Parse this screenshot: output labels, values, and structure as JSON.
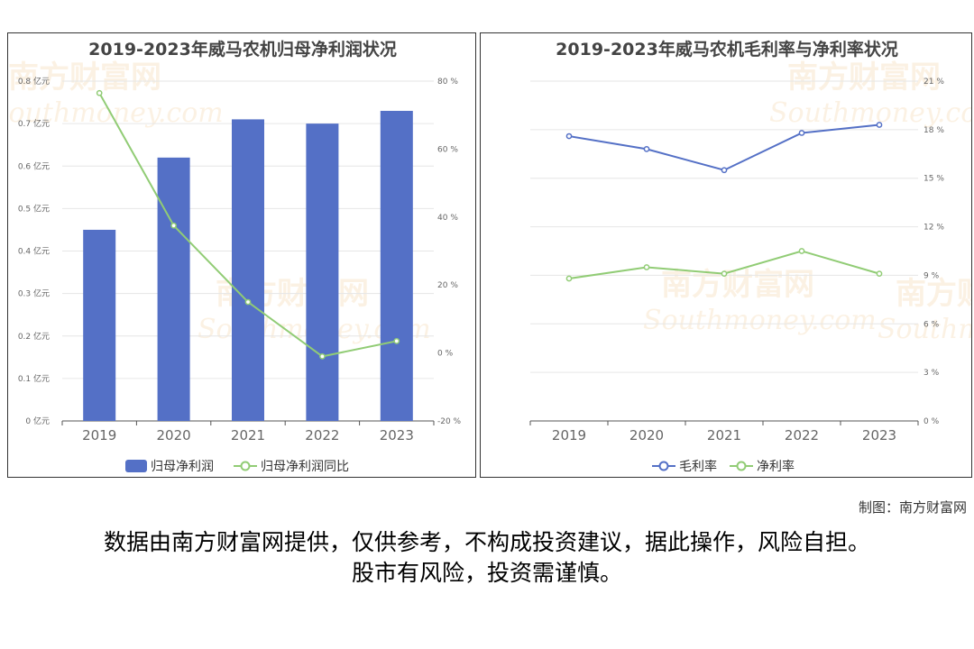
{
  "watermark": {
    "cn": "南方财富网",
    "en": "Southmoney.com"
  },
  "colors": {
    "bar": "#5470c6",
    "line_green": "#91cc75",
    "line_blue": "#5470c6",
    "axis": "#666666",
    "grid": "#e6e6e6"
  },
  "chart_data": [
    {
      "type": "bar",
      "title": "2019-2023年威马农机归母净利润状况",
      "categories": [
        "2019",
        "2020",
        "2021",
        "2022",
        "2023"
      ],
      "series": [
        {
          "name": "归母净利润",
          "type": "bar",
          "axis": "left",
          "values": [
            0.45,
            0.62,
            0.71,
            0.7,
            0.73
          ]
        },
        {
          "name": "归母净利润同比",
          "type": "line",
          "axis": "right",
          "values": [
            76.5,
            37.5,
            15.0,
            -1.0,
            3.5
          ]
        }
      ],
      "y_left": {
        "ticks": [
          "0 亿元",
          "0.1 亿元",
          "0.2 亿元",
          "0.3 亿元",
          "0.4 亿元",
          "0.5 亿元",
          "0.6 亿元",
          "0.7 亿元",
          "0.8 亿元"
        ],
        "ylim": [
          0,
          0.8
        ]
      },
      "y_right": {
        "ticks": [
          "-20 %",
          "0 %",
          "20 %",
          "40 %",
          "60 %",
          "80 %"
        ],
        "ylim": [
          -20,
          80
        ]
      },
      "grid": true,
      "legend": "bottom"
    },
    {
      "type": "line",
      "title": "2019-2023年威马农机毛利率与净利率状况",
      "categories": [
        "2019",
        "2020",
        "2021",
        "2022",
        "2023"
      ],
      "series": [
        {
          "name": "毛利率",
          "values": [
            17.6,
            16.8,
            15.5,
            17.8,
            18.3
          ]
        },
        {
          "name": "净利率",
          "values": [
            8.8,
            9.5,
            9.1,
            10.5,
            9.1
          ]
        }
      ],
      "y_right": {
        "ticks": [
          "0 %",
          "3 %",
          "6 %",
          "9 %",
          "12 %",
          "15 %",
          "18 %",
          "21 %"
        ],
        "ylim": [
          0,
          21
        ]
      },
      "grid": true,
      "legend": "bottom"
    }
  ],
  "footer": {
    "credit": "制图：南方财富网",
    "line1": "数据由南方财富网提供，仅供参考，不构成投资建议，据此操作，风险自担。",
    "line2": "股市有风险，投资需谨慎。"
  }
}
